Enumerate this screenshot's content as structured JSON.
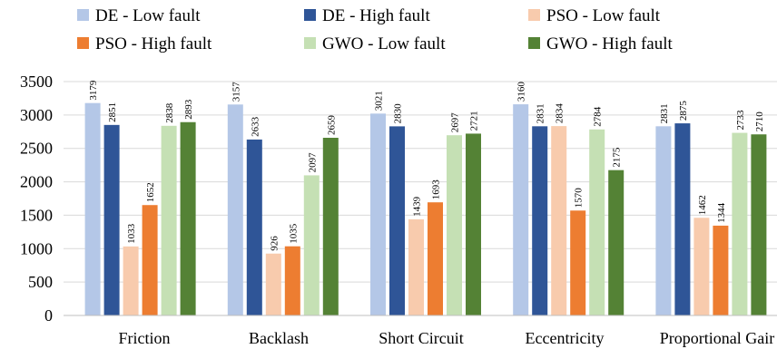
{
  "chart_data": {
    "type": "bar",
    "title": "",
    "xlabel": "",
    "ylabel": "",
    "ylim": [
      0,
      3500
    ],
    "yticks": [
      0,
      500,
      1000,
      1500,
      2000,
      2500,
      3000,
      3500
    ],
    "ytick_labels": [
      "0",
      "500",
      "1000",
      "1500",
      "2000",
      "2500",
      "3000",
      "3500"
    ],
    "grid": true,
    "legend_position": "top",
    "categories": [
      "Friction",
      "Backlash",
      "Short Circuit",
      "Eccentricity",
      "Proportional Gair"
    ],
    "series": [
      {
        "name": "DE - Low fault",
        "color": "#b4c7e7",
        "values": [
          3179,
          3157,
          3021,
          3160,
          2831
        ],
        "labels": [
          "3179",
          "3157",
          "3021",
          "3160",
          "2831"
        ]
      },
      {
        "name": "DE - High fault",
        "color": "#2f5597",
        "values": [
          2851,
          2633,
          2830,
          2831,
          2875
        ],
        "labels": [
          "2851",
          "2633",
          "2830",
          "2831",
          "2875"
        ]
      },
      {
        "name": "PSO - Low fault",
        "color": "#f8cbad",
        "values": [
          1033,
          926,
          1439,
          2834,
          1462
        ],
        "labels": [
          "1033",
          "926",
          "1439",
          "2834",
          "1462"
        ]
      },
      {
        "name": "PSO - High fault",
        "color": "#ed7d31",
        "values": [
          1652,
          1035,
          1693,
          1570,
          1344
        ],
        "labels": [
          "1652",
          "1035",
          "1693",
          "1570",
          "1344"
        ]
      },
      {
        "name": "GWO - Low fault",
        "color": "#c5e0b4",
        "values": [
          2838,
          2097,
          2697,
          2784,
          2733
        ],
        "labels": [
          "2838",
          "2097",
          "2697",
          "2784",
          "2733"
        ]
      },
      {
        "name": "GWO - High fault",
        "color": "#548235",
        "values": [
          2893,
          2659,
          2721,
          2175,
          2710
        ],
        "labels": [
          "2893",
          "2659",
          "2721",
          "2175",
          "2710"
        ]
      }
    ],
    "colors": {
      "grid": "#d9d9d9",
      "axis": "#bfbfbf"
    }
  }
}
